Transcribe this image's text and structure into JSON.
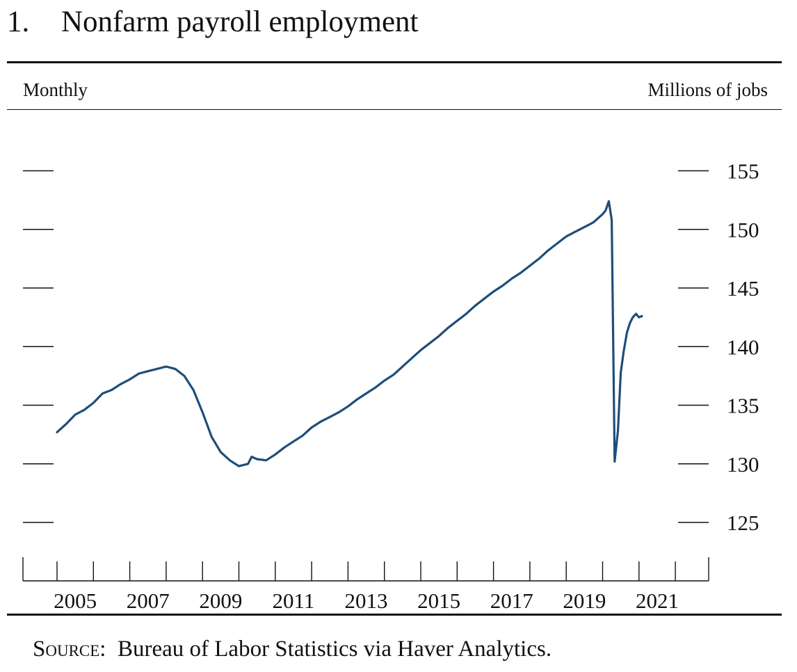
{
  "figure": {
    "number": "1.",
    "title": "Nonfarm payroll employment",
    "frequency": "Monthly",
    "units": "Millions of jobs",
    "source_label": "Source:",
    "source_text": "Bureau of Labor Statistics via Haver Analytics."
  },
  "colors": {
    "line": "#1f4e79",
    "axis": "#111111"
  },
  "chart_data": {
    "type": "line",
    "title": "Nonfarm payroll employment",
    "ylabel": "Millions of jobs",
    "ylim": [
      122,
      158
    ],
    "xlim": [
      2004.5,
      2022.0
    ],
    "yticks": [
      125,
      130,
      135,
      140,
      145,
      150,
      155
    ],
    "xtick_labels": [
      "2005",
      "2007",
      "2009",
      "2011",
      "2013",
      "2015",
      "2017",
      "2019",
      "2021"
    ],
    "grid": false,
    "series": [
      {
        "points": [
          [
            2005.0,
            132.7
          ],
          [
            2005.25,
            133.4
          ],
          [
            2005.5,
            134.2
          ],
          [
            2005.75,
            134.6
          ],
          [
            2006.0,
            135.2
          ],
          [
            2006.25,
            136.0
          ],
          [
            2006.5,
            136.3
          ],
          [
            2006.75,
            136.8
          ],
          [
            2007.0,
            137.2
          ],
          [
            2007.25,
            137.7
          ],
          [
            2007.5,
            137.9
          ],
          [
            2007.75,
            138.1
          ],
          [
            2008.0,
            138.3
          ],
          [
            2008.25,
            138.1
          ],
          [
            2008.5,
            137.5
          ],
          [
            2008.75,
            136.3
          ],
          [
            2009.0,
            134.4
          ],
          [
            2009.25,
            132.3
          ],
          [
            2009.5,
            131.0
          ],
          [
            2009.75,
            130.3
          ],
          [
            2010.0,
            129.8
          ],
          [
            2010.25,
            130.0
          ],
          [
            2010.35,
            130.6
          ],
          [
            2010.5,
            130.4
          ],
          [
            2010.75,
            130.3
          ],
          [
            2011.0,
            130.8
          ],
          [
            2011.25,
            131.4
          ],
          [
            2011.5,
            131.9
          ],
          [
            2011.75,
            132.4
          ],
          [
            2012.0,
            133.1
          ],
          [
            2012.25,
            133.6
          ],
          [
            2012.5,
            134.0
          ],
          [
            2012.75,
            134.4
          ],
          [
            2013.0,
            134.9
          ],
          [
            2013.25,
            135.5
          ],
          [
            2013.5,
            136.0
          ],
          [
            2013.75,
            136.5
          ],
          [
            2014.0,
            137.1
          ],
          [
            2014.25,
            137.6
          ],
          [
            2014.5,
            138.3
          ],
          [
            2014.75,
            139.0
          ],
          [
            2015.0,
            139.7
          ],
          [
            2015.25,
            140.3
          ],
          [
            2015.5,
            140.9
          ],
          [
            2015.75,
            141.6
          ],
          [
            2016.0,
            142.2
          ],
          [
            2016.25,
            142.8
          ],
          [
            2016.5,
            143.5
          ],
          [
            2016.75,
            144.1
          ],
          [
            2017.0,
            144.7
          ],
          [
            2017.25,
            145.2
          ],
          [
            2017.5,
            145.8
          ],
          [
            2017.75,
            146.3
          ],
          [
            2018.0,
            146.9
          ],
          [
            2018.25,
            147.5
          ],
          [
            2018.5,
            148.2
          ],
          [
            2018.75,
            148.8
          ],
          [
            2019.0,
            149.4
          ],
          [
            2019.25,
            149.8
          ],
          [
            2019.5,
            150.2
          ],
          [
            2019.75,
            150.6
          ],
          [
            2020.0,
            151.3
          ],
          [
            2020.08,
            151.6
          ],
          [
            2020.17,
            152.4
          ],
          [
            2020.25,
            150.8
          ],
          [
            2020.33,
            130.2
          ],
          [
            2020.42,
            132.8
          ],
          [
            2020.5,
            137.8
          ],
          [
            2020.58,
            139.6
          ],
          [
            2020.67,
            141.2
          ],
          [
            2020.75,
            142.0
          ],
          [
            2020.83,
            142.5
          ],
          [
            2020.92,
            142.8
          ],
          [
            2021.0,
            142.5
          ],
          [
            2021.08,
            142.6
          ]
        ]
      }
    ]
  }
}
